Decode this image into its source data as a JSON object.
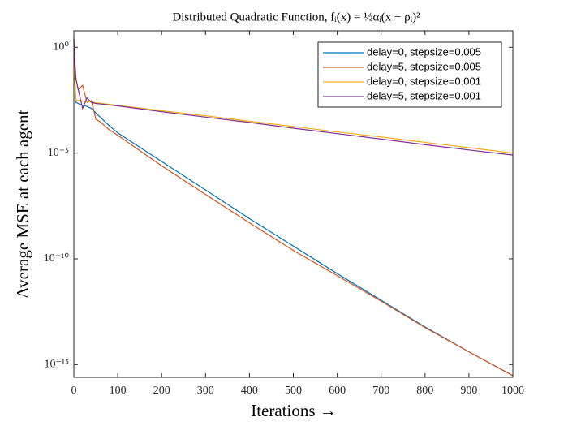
{
  "chart_data": {
    "type": "line",
    "title": "Distributed Quadratic Function, fᵢ(x) = ½αᵢ(x − ρᵢ)²",
    "x_label": "Iterations →",
    "y_label": "Average MSE at each agent",
    "x": [
      0,
      2,
      5,
      10,
      20,
      30,
      40,
      50,
      60,
      80,
      100,
      200,
      300,
      400,
      500,
      600,
      700,
      800,
      900,
      1000
    ],
    "series": [
      {
        "name": "delay=0, stepsize=0.005",
        "color": "#0072BD",
        "values": [
          2,
          0.03,
          0.0025,
          0.0022,
          0.0018,
          0.0016,
          0.0013,
          0.0008,
          0.0005,
          0.0002,
          9e-05,
          4e-06,
          1.8e-07,
          8e-09,
          4e-10,
          2e-11,
          1.1e-12,
          6e-14,
          4e-15,
          3e-16
        ]
      },
      {
        "name": "delay=5, stepsize=0.005",
        "color": "#D95319",
        "values": [
          2.5,
          0.3,
          0.03,
          0.01,
          0.016,
          0.0025,
          0.003,
          0.0004,
          0.0003,
          0.00013,
          7e-05,
          2.5e-06,
          1.1e-07,
          5e-09,
          2.5e-10,
          1.6e-11,
          1e-12,
          5.6e-14,
          4e-15,
          3e-16
        ]
      },
      {
        "name": "delay=0, stepsize=0.001",
        "color": "#EDB120",
        "values": [
          3,
          0.03,
          0.003,
          0.0031,
          0.0029,
          0.0027,
          0.0026,
          0.0024,
          0.0023,
          0.002,
          0.0018,
          0.001,
          0.00058,
          0.00032,
          0.00018,
          0.0001,
          5.8e-05,
          3.2e-05,
          1.8e-05,
          1e-05
        ]
      },
      {
        "name": "delay=5, stepsize=0.001",
        "color": "#7E2F8E",
        "values": [
          2.5,
          0.16,
          0.03,
          0.01,
          0.0013,
          0.004,
          0.0025,
          0.0022,
          0.0021,
          0.0019,
          0.0017,
          0.0009,
          0.0005,
          0.00028,
          0.00015,
          8.3e-05,
          4.6e-05,
          2.5e-05,
          1.4e-05,
          8e-06
        ]
      }
    ],
    "xlim": [
      0,
      1000
    ],
    "xticks": [
      0,
      100,
      200,
      300,
      400,
      500,
      600,
      700,
      800,
      900,
      1000
    ],
    "ylim": [
      2.5e-16,
      6
    ],
    "y_scale": "log",
    "yticks": [
      {
        "value": 1,
        "label": "10⁰"
      },
      {
        "value": 1e-05,
        "label": "10⁻⁵"
      },
      {
        "value": 1e-10,
        "label": "10⁻¹⁰"
      },
      {
        "value": 1e-15,
        "label": "10⁻¹⁵"
      }
    ],
    "legend": "upper right",
    "grid": false
  }
}
